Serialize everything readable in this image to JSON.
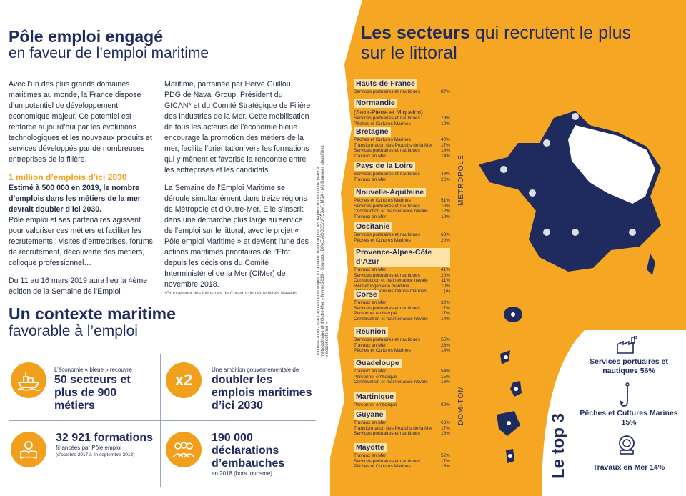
{
  "left": {
    "title_line1": "Pôle emploi engagé",
    "title_line2": "en faveur de l’emploi maritime",
    "col1_intro": "Avec l’un des plus grands domaines maritimes au monde, la France dispose d’un potentiel de développement économique majeur. Ce potentiel est renforcé aujourd’hui par les évolutions technologiques et les nouveaux produits et services développés par de nombreuses entreprises de la filière.",
    "col1_heading": "1 million d’emplois d’ici 2030",
    "col1_bold": "Estimé à 500 000 en 2019, le nombre d’emplois dans les métiers de la mer devrait doubler d’ici 2030.",
    "col1_body": "Pôle emploi et ses partenaires agissent pour valoriser ces métiers et faciliter les recrutements : visites d’entreprises, forums de recrutement, découverte des métiers, colloque professionnel…",
    "col1_end": "Du 11 au 16 mars 2019 aura lieu la 4ème édition de la Semaine de l’Emploi",
    "col2_p1": "Maritime, parrainée par Hervé Guillou, PDG de Naval Group, Président du GICAN* et du Comité Stratégique de Filière des Industries de la Mer. Cette mobilisation de tous les acteurs de l’économie bleue encourage la promotion des métiers de la mer, facilite l’orientation vers les formations qui y mènent et favorise la rencontre entre les entreprises et les candidats.",
    "col2_p2": "La Semaine de l’Emploi Maritime se déroule simultanément dans treize régions de Métropole et d’Outre-Mer. Elle s’inscrit dans une démarche plus large au service de l’emploi sur le littoral, avec le projet « Pôle emploi Maritime » et devient l’une des actions maritimes prioritaires de l’Etat depuis les décisions du Comité Interministériel de la Mer (CIMer) de novembre 2018.",
    "footnote": "*Groupement des Industries de Construction et Activités Navales",
    "title3_line1": "Un contexte maritime",
    "title3_line2": "favorable à l’emploi",
    "stat1_small": "L’économie « bleue » recouvre",
    "stat1_big": "50 secteurs et plus de 900 métiers",
    "stat2_icon": "x2",
    "stat2_small": "Une ambition gouvernementale de",
    "stat2_big": "doubler les emplois maritimes d’ici 2030",
    "stat3_big": "32 921 formations",
    "stat3_small": "financées par Pôle emploi",
    "stat3_note": "(d’octobre 2017 à fin septembre 2018)",
    "stat4_big": "190 000 déclarations d’embauches",
    "stat4_small": "en 2018 (hors tourisme)"
  },
  "right": {
    "title_bold": "Les secteurs",
    "title_rest": " qui recrutent le plus sur le littoral",
    "sources": "Données 2018 - Stat l’Apprest Pôle emploi « La filière maritime pour les régions du littoral de France métropolitaine et d’Outre-Mer » février 2019 - Sources : DPAE ACOSS/URSSAF, MSA - (A) Données classifiées « secret défense »",
    "metropole": "MÉTROPOLE",
    "domtom": "DOM-TOM",
    "colors": {
      "orange": "#f5a623",
      "navy": "#1f2b5e",
      "label_bg": "#ffe3a8"
    },
    "regions": [
      {
        "name": "Hauts-de-France",
        "rows": [
          [
            "Services portuaires et nautiques",
            "87%"
          ]
        ]
      },
      {
        "name": "Normandie",
        "extra": "(Saint-Pierre et Miquelon)",
        "rows": [
          [
            "Services portuaires et nautiques",
            "79%"
          ],
          [
            "Pêches et Cultures Marines",
            "10%"
          ]
        ]
      },
      {
        "name": "Bretagne",
        "rows": [
          [
            "Pêches et Cultures Marines",
            "40%"
          ],
          [
            "Transformation des Produits de la Mer",
            "17%"
          ],
          [
            "Services portuaires et nautiques",
            "14%"
          ],
          [
            "Travaux en Mer",
            "14%"
          ]
        ]
      },
      {
        "name": "Pays de la Loire",
        "rows": [
          [
            "Services portuaires et nautiques",
            "48%"
          ],
          [
            "Travaux en Mer",
            "26%"
          ]
        ]
      },
      {
        "name": "Nouvelle-Aquitaine",
        "rows": [
          [
            "Pêches et Cultures Marines",
            "51%"
          ],
          [
            "Services portuaires et nautiques",
            "16%"
          ],
          [
            "Construction et maintenance navale",
            "12%"
          ],
          [
            "Travaux en Mer",
            "10%"
          ]
        ]
      },
      {
        "name": "Occitanie",
        "rows": [
          [
            "Services portuaires et nautiques",
            "63%"
          ],
          [
            "Pêches et Cultures Marines",
            "20%"
          ]
        ]
      },
      {
        "name": "Provence-Alpes-Côte d’Azur",
        "rows": [
          [
            "Travaux en Mer",
            "41%"
          ],
          [
            "Services portuaires et nautiques",
            "20%"
          ],
          [
            "Construction et maintenance navale",
            "11%"
          ],
          [
            "R&D et ingénierie maritime",
            "10%"
          ],
          [
            "Défense et administrations marines",
            "(A)"
          ]
        ]
      },
      {
        "name": "Corse",
        "rows": [
          [
            "Travaux en Mer",
            "32%"
          ],
          [
            "Services portuaires et nautiques",
            "17%"
          ],
          [
            "Personnel embarqué",
            "17%"
          ],
          [
            "Construction et maintenance navale",
            "14%"
          ]
        ]
      },
      {
        "name": "Réunion",
        "rows": [
          [
            "Services portuaires et nautiques",
            "55%"
          ],
          [
            "Travaux en Mer",
            "23%"
          ],
          [
            "Pêches et Cultures Marines",
            "14%"
          ]
        ]
      },
      {
        "name": "Guadeloupe",
        "rows": [
          [
            "Travaux en Mer",
            "54%"
          ],
          [
            "Personnel embarqué",
            "15%"
          ],
          [
            "Construction et maintenance navale",
            "13%"
          ]
        ]
      },
      {
        "name": "Martinique",
        "rows": [
          [
            "Personnel embarqué",
            "82%"
          ]
        ]
      },
      {
        "name": "Guyane",
        "rows": [
          [
            "Travaux en Mer",
            "66%"
          ],
          [
            "Transformation des Produits de la Mer",
            "17%"
          ],
          [
            "Services portuaires et nautiques",
            "16%"
          ]
        ]
      },
      {
        "name": "Mayotte",
        "rows": [
          [
            "Travaux en Mer",
            "52%"
          ],
          [
            "Services portuaires et nautiques",
            "17%"
          ],
          [
            "Pêches et Cultures Marines",
            "16%"
          ]
        ]
      }
    ],
    "top3_label": "Le top 3",
    "top3": [
      {
        "label": "Services portuaires et nautiques 56%",
        "icon": "factory-icon"
      },
      {
        "label": "Pêches et Cultures Marines 15%",
        "icon": "fishhook-icon"
      },
      {
        "label": "Travaux en Mer 14%",
        "icon": "diving-helmet-icon"
      }
    ]
  }
}
